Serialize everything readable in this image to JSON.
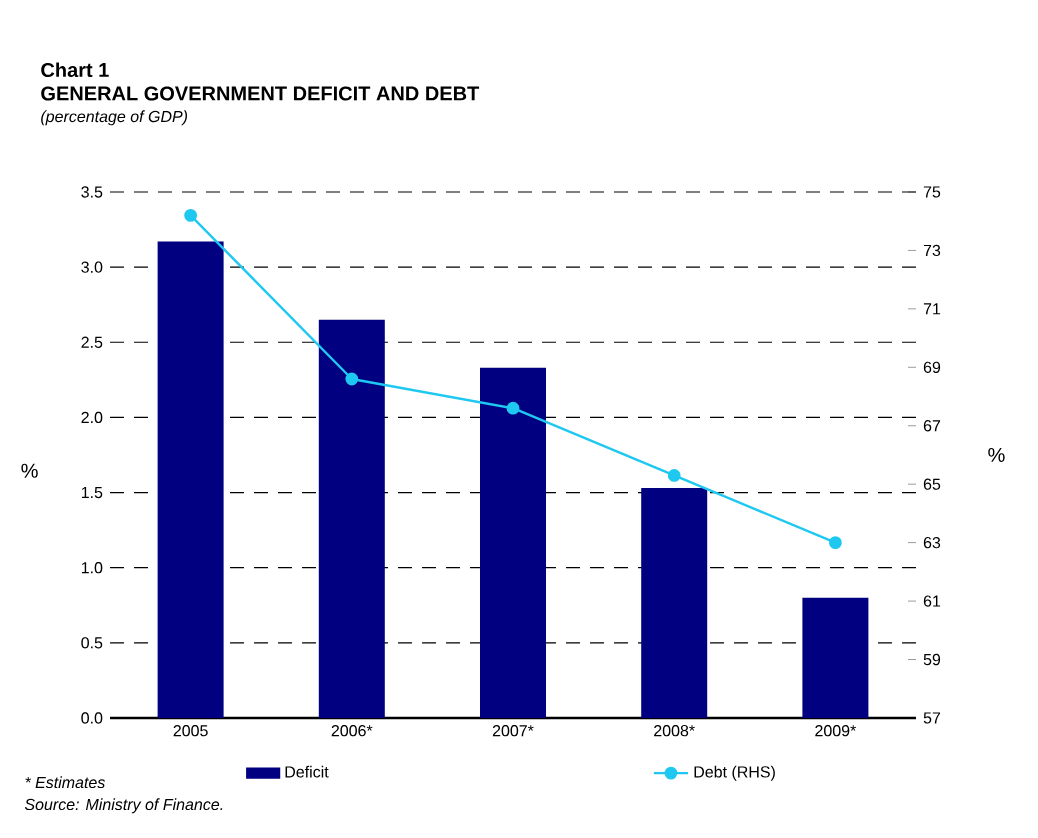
{
  "chart_data": {
    "type": "bar",
    "title": "GENERAL GOVERNMENT DEFICIT AND DEBT",
    "subtitle": "(percentage of GDP)",
    "ylabel": "%",
    "y2label": "%",
    "categories": [
      "2005",
      "2006*",
      "2007*",
      "2008*",
      "2009*"
    ],
    "series": [
      {
        "name": "Deficit",
        "color": "#000080",
        "values": [
          3.17,
          2.65,
          2.33,
          1.53,
          0.8
        ]
      },
      {
        "name": "Debt (RHS)",
        "type": "line",
        "axis": "y2",
        "color": "#1ec8f0",
        "marker": "circle",
        "values": [
          74.2,
          68.6,
          67.6,
          65.3,
          63.0
        ]
      }
    ],
    "ylim": [
      0,
      3.5
    ],
    "yticks": [
      {
        "value": 0,
        "label": "0.0"
      },
      {
        "value": 0.5,
        "label": "0.5"
      },
      {
        "value": 1,
        "label": "1.0"
      },
      {
        "value": 1.5,
        "label": "1.5"
      },
      {
        "value": 2,
        "label": "2.0"
      },
      {
        "value": 2.5,
        "label": "2.5"
      },
      {
        "value": 3,
        "label": "3.0"
      },
      {
        "value": 3.5,
        "label": "3.5"
      }
    ],
    "y2lim": [
      57,
      75
    ],
    "y2ticks": [
      57,
      59,
      61,
      63,
      65,
      67,
      69,
      71,
      73,
      75
    ],
    "grid": "y",
    "legend": "bottom",
    "annotations": [
      "Chart 1",
      "* Estimates",
      "Source: Ministry of Finance."
    ]
  }
}
